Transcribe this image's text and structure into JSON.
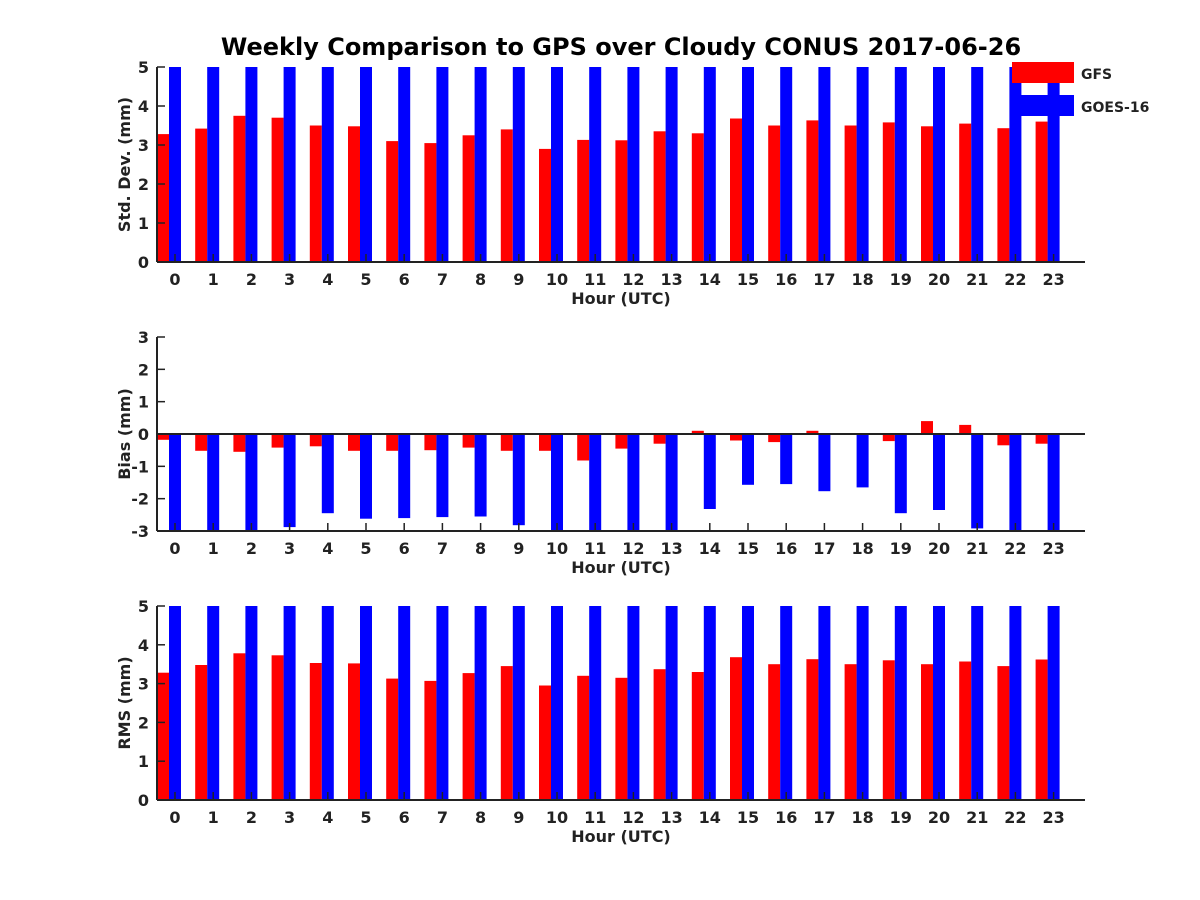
{
  "chart_data": {
    "type": "bar",
    "title": "Weekly Comparison to GPS over Cloudy CONUS 2017-06-26",
    "categories": [
      "0",
      "1",
      "2",
      "3",
      "4",
      "5",
      "6",
      "7",
      "8",
      "9",
      "10",
      "11",
      "12",
      "13",
      "14",
      "15",
      "16",
      "17",
      "18",
      "19",
      "20",
      "21",
      "22",
      "23"
    ],
    "legend": {
      "placement": "top-right",
      "entries": [
        {
          "name": "GFS",
          "color": "#ff0000"
        },
        {
          "name": "GOES-16",
          "color": "#0000ff"
        }
      ]
    },
    "panels": [
      {
        "id": "stddev",
        "ylabel": "Std. Dev. (mm)",
        "xlabel": "Hour (UTC)",
        "ylim": [
          0,
          5
        ],
        "yticks": [
          "0",
          "1",
          "2",
          "3",
          "4",
          "5"
        ],
        "series": [
          {
            "name": "GFS",
            "color": "#ff0000",
            "values": [
              3.28,
              3.42,
              3.75,
              3.7,
              3.5,
              3.48,
              3.1,
              3.05,
              3.25,
              3.4,
              2.9,
              3.13,
              3.12,
              3.35,
              3.3,
              3.68,
              3.5,
              3.63,
              3.5,
              3.58,
              3.48,
              3.55,
              3.43,
              3.6
            ]
          },
          {
            "name": "GOES-16",
            "color": "#0000ff",
            "values": [
              5,
              5,
              5,
              5,
              5,
              5,
              5,
              5,
              5,
              5,
              5,
              5,
              5,
              5,
              5,
              5,
              5,
              5,
              5,
              5,
              5,
              5,
              5,
              5
            ]
          }
        ]
      },
      {
        "id": "bias",
        "ylabel": "Bias (mm)",
        "xlabel": "Hour (UTC)",
        "ylim": [
          -3,
          3
        ],
        "yticks": [
          "-3",
          "-2",
          "-1",
          "0",
          "1",
          "2",
          "3"
        ],
        "series": [
          {
            "name": "GFS",
            "color": "#ff0000",
            "values": [
              -0.18,
              -0.52,
              -0.55,
              -0.42,
              -0.38,
              -0.52,
              -0.52,
              -0.5,
              -0.42,
              -0.52,
              -0.52,
              -0.82,
              -0.45,
              -0.3,
              0.1,
              -0.2,
              -0.25,
              0.1,
              -0.03,
              -0.22,
              0.4,
              0.28,
              -0.35,
              -0.3
            ]
          },
          {
            "name": "GOES-16",
            "color": "#0000ff",
            "values": [
              -3,
              -3,
              -3,
              -2.88,
              -2.45,
              -2.62,
              -2.6,
              -2.57,
              -2.55,
              -2.82,
              -3,
              -3,
              -3,
              -3,
              -2.32,
              -1.57,
              -1.55,
              -1.77,
              -1.65,
              -2.45,
              -2.35,
              -2.92,
              -3,
              -3
            ]
          }
        ]
      },
      {
        "id": "rms",
        "ylabel": "RMS (mm)",
        "xlabel": "Hour (UTC)",
        "ylim": [
          0,
          5
        ],
        "yticks": [
          "0",
          "1",
          "2",
          "3",
          "4",
          "5"
        ],
        "series": [
          {
            "name": "GFS",
            "color": "#ff0000",
            "values": [
              3.28,
              3.48,
              3.78,
              3.73,
              3.53,
              3.52,
              3.13,
              3.07,
              3.27,
              3.45,
              2.95,
              3.2,
              3.15,
              3.37,
              3.3,
              3.68,
              3.5,
              3.63,
              3.5,
              3.6,
              3.5,
              3.57,
              3.45,
              3.62
            ]
          },
          {
            "name": "GOES-16",
            "color": "#0000ff",
            "values": [
              5,
              5,
              5,
              5,
              5,
              5,
              5,
              5,
              5,
              5,
              5,
              5,
              5,
              5,
              5,
              5,
              5,
              5,
              5,
              5,
              5,
              5,
              5,
              5
            ]
          }
        ]
      }
    ]
  }
}
